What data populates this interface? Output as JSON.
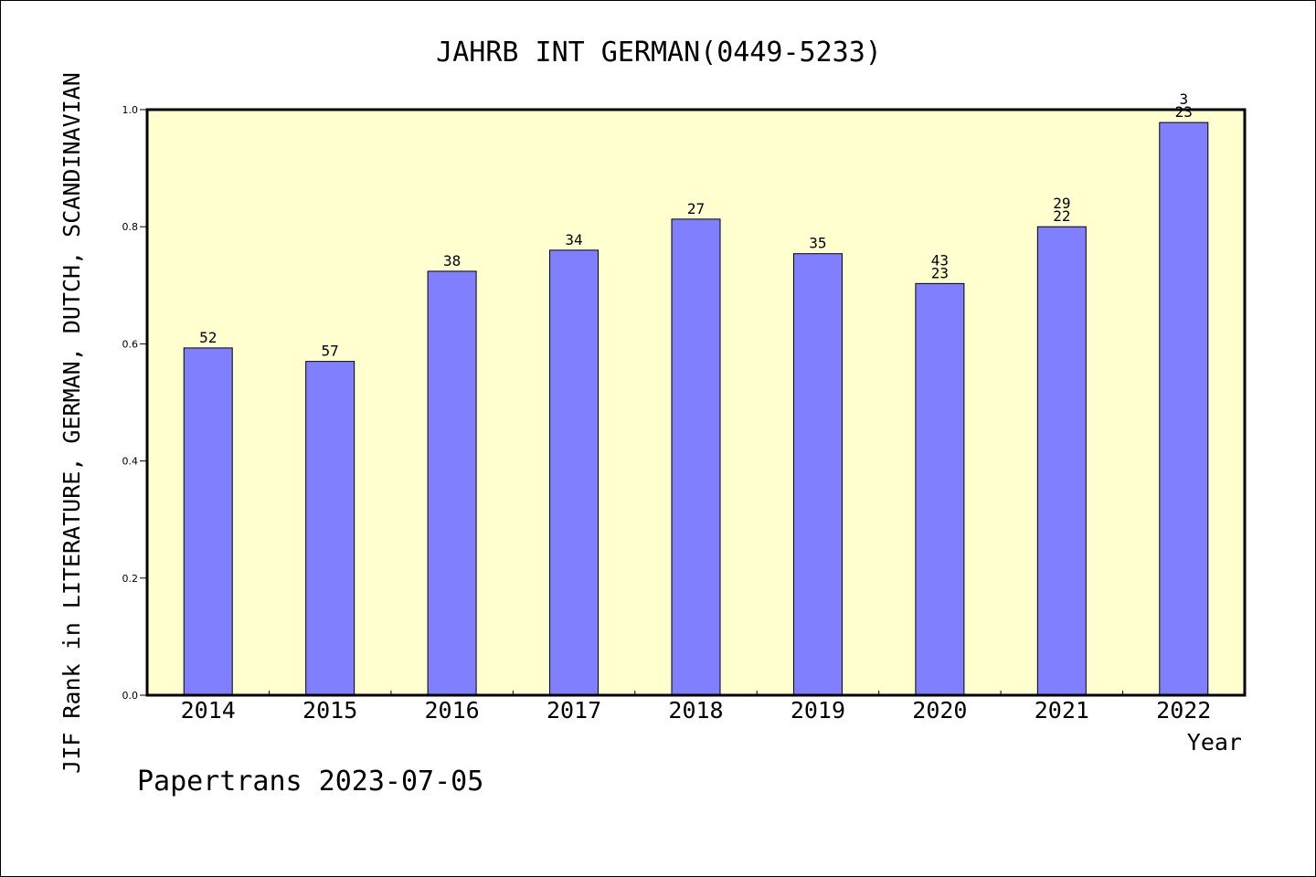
{
  "chart_data": {
    "type": "bar",
    "title": "JAHRB INT GERMAN(0449-5233)",
    "xlabel": "Year",
    "ylabel": "JIF Rank in LITERATURE, GERMAN, DUTCH, SCANDINAVIAN",
    "categories": [
      "2014",
      "2015",
      "2016",
      "2017",
      "2018",
      "2019",
      "2020",
      "2021",
      "2022"
    ],
    "values": [
      0.593,
      0.57,
      0.724,
      0.76,
      0.813,
      0.754,
      0.703,
      0.8,
      0.978
    ],
    "bar_labels": [
      [
        "52"
      ],
      [
        "57"
      ],
      [
        "38"
      ],
      [
        "34"
      ],
      [
        "27"
      ],
      [
        "35"
      ],
      [
        "43",
        "23"
      ],
      [
        "29",
        "22"
      ],
      [
        "3",
        "23"
      ]
    ],
    "ylim": [
      0,
      1.0
    ],
    "yticks": [
      "0.0",
      "0.2",
      "0.4",
      "0.6",
      "0.8",
      "1.0"
    ],
    "grid": false,
    "footer": "Papertrans 2023-07-05",
    "colors": {
      "bar_fill": "#8080ff",
      "plot_background": "#ffffd0",
      "axis": "#000000"
    }
  }
}
